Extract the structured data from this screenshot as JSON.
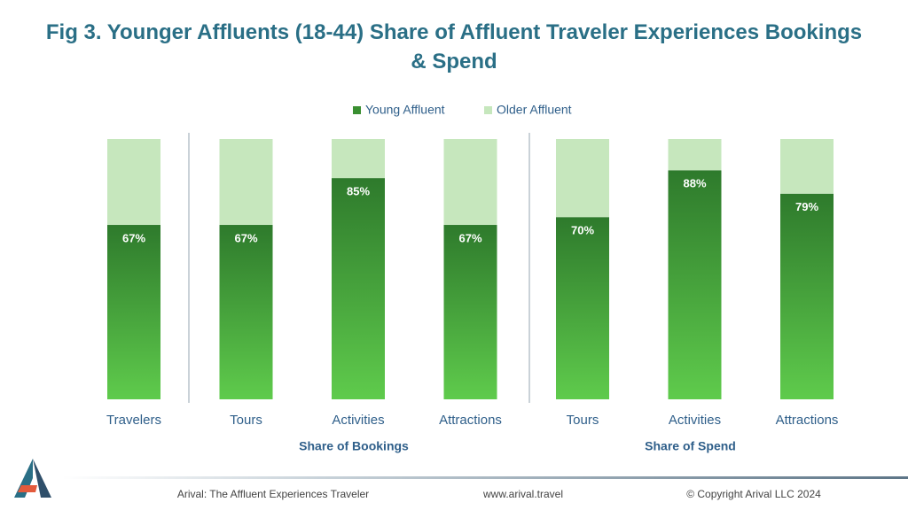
{
  "chart_data": {
    "type": "stacked_bar_100",
    "title": "Fig 3. Younger Affluents (18-44) Share of Affluent Traveler Experiences Bookings & Spend",
    "categories": [
      "Travelers",
      "Tours",
      "Activities",
      "Attractions",
      "Tours",
      "Activities",
      "Attractions"
    ],
    "group_labels": [
      "Share of Bookings",
      "Share of Spend"
    ],
    "legend": "top",
    "series": [
      {
        "name": "Young Affluent",
        "color": "#3f9a35",
        "values": [
          67,
          67,
          85,
          67,
          70,
          88,
          79
        ],
        "value_labels": [
          "67%",
          "67%",
          "85%",
          "67%",
          "70%",
          "88%",
          "79%"
        ]
      },
      {
        "name": "Older Affluent",
        "color": "#c6e7bd",
        "values": [
          33,
          33,
          15,
          33,
          30,
          12,
          21
        ]
      }
    ]
  },
  "footer": {
    "source": "Arival: The  Affluent Experiences Traveler",
    "url": "www.arival.travel",
    "copyright": "© Copyright Arival LLC 2024"
  }
}
